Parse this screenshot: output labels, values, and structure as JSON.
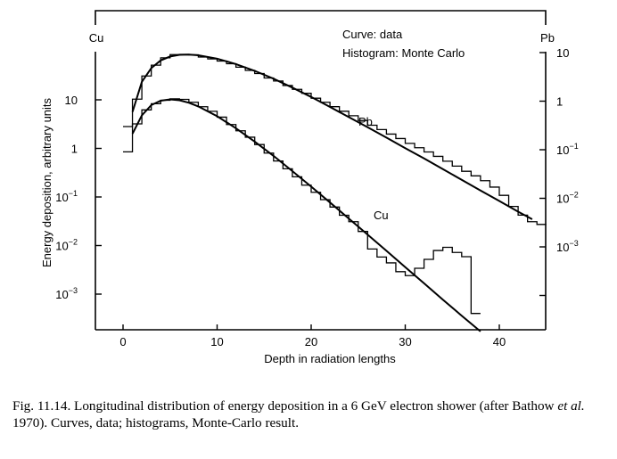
{
  "chart_data": {
    "type": "line",
    "xlabel": "Depth in radiation lengths",
    "ylabel": "Energy deposition, arbitrary units",
    "xlim": [
      -3,
      45
    ],
    "left_axis": {
      "series_label": "Cu",
      "tick_values": [
        10,
        1,
        0.1,
        0.01,
        0.001
      ],
      "tick_labels": [
        {
          "base": "10",
          "exp": ""
        },
        {
          "base": "1",
          "exp": ""
        },
        {
          "base": "10",
          "exp": "−1"
        },
        {
          "base": "10",
          "exp": "−2"
        },
        {
          "base": "10",
          "exp": "−3"
        }
      ]
    },
    "right_axis": {
      "series_label": "Pb",
      "tick_values": [
        10,
        1,
        0.1,
        0.01,
        0.001
      ],
      "tick_labels": [
        {
          "base": "10",
          "exp": ""
        },
        {
          "base": "1",
          "exp": ""
        },
        {
          "base": "10",
          "exp": "−1"
        },
        {
          "base": "10",
          "exp": "−2"
        },
        {
          "base": "10",
          "exp": "−3"
        }
      ]
    },
    "x_ticks": [
      0,
      10,
      20,
      30,
      40
    ],
    "legend": {
      "line1": "Curve: data",
      "line2": "Histogram: Monte Carlo",
      "placement": "top-center"
    },
    "series": [
      {
        "name": "Pb",
        "axis": "right",
        "curve": {
          "x": [
            1,
            2,
            3,
            4,
            5,
            6,
            7,
            8,
            10,
            12,
            14,
            16,
            18,
            20,
            22,
            24,
            26,
            28,
            30,
            32,
            34,
            36,
            38,
            40,
            42,
            43.5
          ],
          "y": [
            0.6,
            2.5,
            4.8,
            6.9,
            8.3,
            9.0,
            9.1,
            8.8,
            7.5,
            5.8,
            4.2,
            2.9,
            1.9,
            1.22,
            0.76,
            0.47,
            0.29,
            0.178,
            0.108,
            0.066,
            0.04,
            0.024,
            0.0145,
            0.0088,
            0.0053,
            0.0037
          ]
        },
        "histogram": {
          "edges": [
            0,
            1,
            2,
            3,
            4,
            5,
            6,
            7,
            8,
            9,
            10,
            11,
            12,
            13,
            14,
            15,
            16,
            17,
            18,
            19,
            20,
            21,
            22,
            23,
            24,
            25,
            26,
            27,
            28,
            29,
            30,
            31,
            32,
            33,
            34,
            35,
            36,
            37,
            38,
            39,
            40,
            41,
            42,
            43,
            44,
            45
          ],
          "values": [
            0.3,
            1.1,
            3.3,
            5.5,
            7.8,
            9.1,
            9.2,
            9.0,
            8.1,
            7.4,
            6.7,
            5.9,
            5.0,
            4.3,
            3.7,
            3.0,
            2.6,
            2.1,
            1.75,
            1.45,
            1.15,
            0.95,
            0.77,
            0.62,
            0.5,
            0.4,
            0.32,
            0.26,
            0.21,
            0.17,
            0.135,
            0.11,
            0.09,
            0.073,
            0.058,
            0.046,
            0.036,
            0.029,
            0.023,
            0.017,
            0.0115,
            0.0068,
            0.0045,
            0.0033,
            0.0029
          ]
        }
      },
      {
        "name": "Cu",
        "axis": "left",
        "curve": {
          "x": [
            1,
            2,
            3,
            4,
            5,
            6,
            7,
            8,
            10,
            12,
            14,
            16,
            18,
            20,
            22,
            24,
            26,
            28,
            30,
            32,
            34,
            36,
            38
          ],
          "y": [
            2.0,
            4.8,
            7.8,
            9.6,
            10.2,
            9.8,
            8.7,
            7.3,
            4.6,
            2.6,
            1.38,
            0.7,
            0.34,
            0.163,
            0.077,
            0.036,
            0.0168,
            0.0078,
            0.0036,
            0.00167,
            0.00077,
            0.00036,
            0.00017
          ]
        },
        "histogram": {
          "edges": [
            0,
            1,
            2,
            3,
            4,
            5,
            6,
            7,
            8,
            9,
            10,
            11,
            12,
            13,
            14,
            15,
            16,
            17,
            18,
            19,
            20,
            21,
            22,
            23,
            24,
            25,
            26,
            27,
            28,
            29,
            30,
            31,
            32,
            33,
            34,
            35,
            36,
            37,
            38
          ],
          "values": [
            0.85,
            3.2,
            6.2,
            8.3,
            9.8,
            10.5,
            10.2,
            8.9,
            7.2,
            5.8,
            4.4,
            3.1,
            2.3,
            1.7,
            1.2,
            0.8,
            0.55,
            0.38,
            0.26,
            0.175,
            0.125,
            0.088,
            0.062,
            0.042,
            0.031,
            0.0195,
            0.0085,
            0.0058,
            0.0044,
            0.0029,
            0.0024,
            0.0034,
            0.0052,
            0.0079,
            0.0092,
            0.0072,
            0.0059,
            0.0004
          ]
        }
      }
    ]
  },
  "caption": {
    "p1": "Fig. 11.14. Longitudinal distribution of energy deposition in a 6 GeV electron shower (after Bathow ",
    "etal": "et al.",
    "p2": " 1970). Curves, data; histograms, Monte-Carlo result."
  }
}
